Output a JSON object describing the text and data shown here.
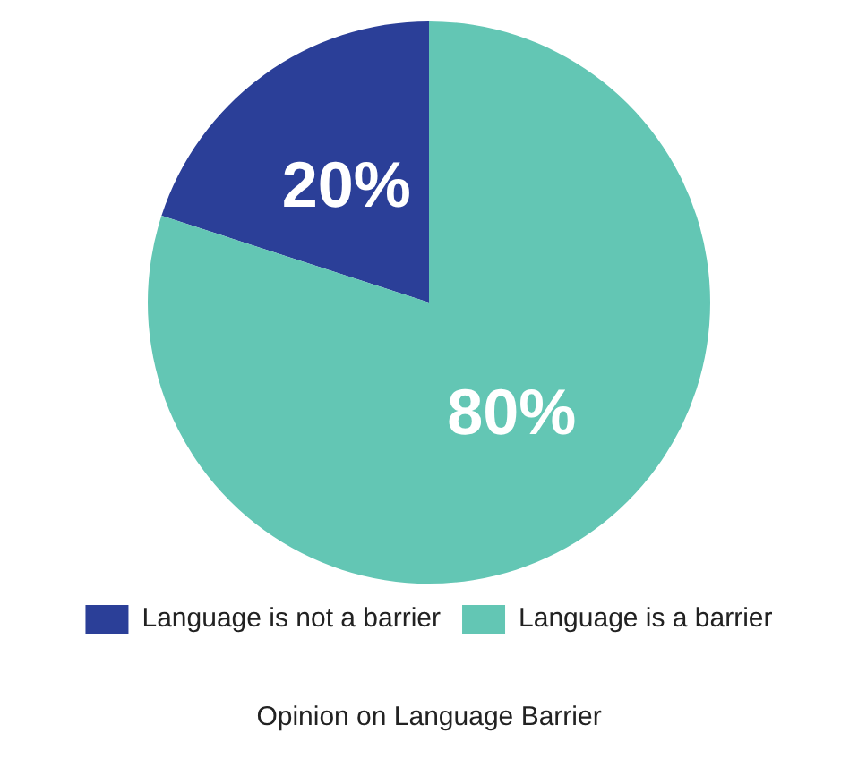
{
  "chart_data": {
    "type": "pie",
    "title": "Opinion on Language Barrier",
    "categories": [
      "Language is not a barrier",
      "Language is a barrier"
    ],
    "values": [
      20,
      80
    ],
    "value_labels": [
      "20%",
      "80%"
    ],
    "colors": [
      "#2b3f98",
      "#63c6b4"
    ],
    "legend": "bottom"
  }
}
